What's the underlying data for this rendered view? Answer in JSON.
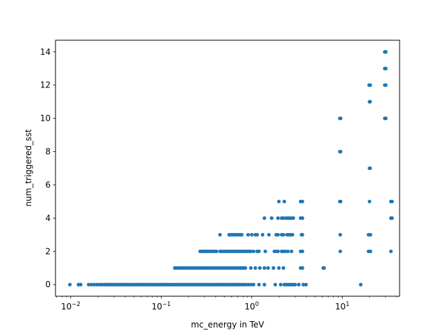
{
  "chart_data": {
    "type": "scatter",
    "title": "",
    "xlabel": "mc_energy in TeV",
    "ylabel": "num_triggered_sst",
    "xscale": "log",
    "xlim": [
      0.0068,
      43
    ],
    "ylim": [
      -0.7,
      14.7
    ],
    "x_ticks": [
      {
        "value": 0.01,
        "base": "10",
        "exp": "−2"
      },
      {
        "value": 0.1,
        "base": "10",
        "exp": "−1"
      },
      {
        "value": 1,
        "base": "10",
        "exp": "0"
      },
      {
        "value": 10,
        "base": "10",
        "exp": "1"
      }
    ],
    "y_ticks": [
      0,
      2,
      4,
      6,
      8,
      10,
      12,
      14
    ],
    "grid": false,
    "legend": "none",
    "marker_color": "#1f77b4",
    "series": [
      {
        "points": [
          [
            0.0098,
            0
          ],
          [
            0.0122,
            0
          ],
          [
            0.0129,
            0
          ],
          [
            0.0158,
            0
          ],
          [
            0.017,
            0
          ],
          [
            0.0182,
            0
          ],
          [
            0.0195,
            0
          ],
          [
            0.0208,
            0
          ],
          [
            0.022,
            0
          ],
          [
            0.0234,
            0
          ],
          [
            0.0245,
            0
          ],
          [
            0.0257,
            0
          ],
          [
            0.0269,
            0
          ],
          [
            0.0282,
            0
          ],
          [
            0.0295,
            0
          ],
          [
            0.0309,
            0
          ],
          [
            0.0324,
            0
          ],
          [
            0.0339,
            0
          ],
          [
            0.0355,
            0
          ],
          [
            0.0372,
            0
          ],
          [
            0.0389,
            0
          ],
          [
            0.0407,
            0
          ],
          [
            0.0427,
            0
          ],
          [
            0.0447,
            0
          ],
          [
            0.0468,
            0
          ],
          [
            0.049,
            0
          ],
          [
            0.0513,
            0
          ],
          [
            0.0537,
            0
          ],
          [
            0.0562,
            0
          ],
          [
            0.0589,
            0
          ],
          [
            0.0617,
            0
          ],
          [
            0.0646,
            0
          ],
          [
            0.0676,
            0
          ],
          [
            0.0708,
            0
          ],
          [
            0.0741,
            0
          ],
          [
            0.0776,
            0
          ],
          [
            0.0813,
            0
          ],
          [
            0.0851,
            0
          ],
          [
            0.0891,
            0
          ],
          [
            0.0933,
            0
          ],
          [
            0.0977,
            0
          ],
          [
            0.1023,
            0
          ],
          [
            0.1072,
            0
          ],
          [
            0.1122,
            0
          ],
          [
            0.1175,
            0
          ],
          [
            0.123,
            0
          ],
          [
            0.1288,
            0
          ],
          [
            0.1349,
            0
          ],
          [
            0.1413,
            0
          ],
          [
            0.1479,
            0
          ],
          [
            0.1549,
            0
          ],
          [
            0.1622,
            0
          ],
          [
            0.1698,
            0
          ],
          [
            0.1778,
            0
          ],
          [
            0.1862,
            0
          ],
          [
            0.195,
            0
          ],
          [
            0.2042,
            0
          ],
          [
            0.2138,
            0
          ],
          [
            0.2239,
            0
          ],
          [
            0.2344,
            0
          ],
          [
            0.2455,
            0
          ],
          [
            0.257,
            0
          ],
          [
            0.2692,
            0
          ],
          [
            0.2818,
            0
          ],
          [
            0.2951,
            0
          ],
          [
            0.309,
            0
          ],
          [
            0.3236,
            0
          ],
          [
            0.3388,
            0
          ],
          [
            0.3548,
            0
          ],
          [
            0.3715,
            0
          ],
          [
            0.389,
            0
          ],
          [
            0.4074,
            0
          ],
          [
            0.4266,
            0
          ],
          [
            0.4467,
            0
          ],
          [
            0.4677,
            0
          ],
          [
            0.4898,
            0
          ],
          [
            0.5129,
            0
          ],
          [
            0.537,
            0
          ],
          [
            0.5623,
            0
          ],
          [
            0.5888,
            0
          ],
          [
            0.6166,
            0
          ],
          [
            0.6457,
            0
          ],
          [
            0.6761,
            0
          ],
          [
            0.7079,
            0
          ],
          [
            0.7413,
            0
          ],
          [
            0.7762,
            0
          ],
          [
            0.8128,
            0
          ],
          [
            0.8511,
            0
          ],
          [
            0.912,
            0
          ],
          [
            0.9772,
            0
          ],
          [
            1.0471,
            0
          ],
          [
            1.2023,
            0
          ],
          [
            1.3804,
            0
          ],
          [
            1.8197,
            0
          ],
          [
            2.0893,
            0
          ],
          [
            2.2908,
            0
          ],
          [
            2.4,
            0
          ],
          [
            2.5119,
            0
          ],
          [
            2.6303,
            0
          ],
          [
            2.7542,
            0
          ],
          [
            2.884,
            0
          ],
          [
            3.02,
            0
          ],
          [
            3.3113,
            0
          ],
          [
            3.7154,
            0
          ],
          [
            3.9811,
            0
          ],
          [
            16.0,
            0
          ],
          [
            0.1413,
            1
          ],
          [
            0.1479,
            1
          ],
          [
            0.1549,
            1
          ],
          [
            0.1622,
            1
          ],
          [
            0.1698,
            1
          ],
          [
            0.1778,
            1
          ],
          [
            0.1862,
            1
          ],
          [
            0.195,
            1
          ],
          [
            0.2042,
            1
          ],
          [
            0.2138,
            1
          ],
          [
            0.2239,
            1
          ],
          [
            0.2344,
            1
          ],
          [
            0.2455,
            1
          ],
          [
            0.257,
            1
          ],
          [
            0.2692,
            1
          ],
          [
            0.2818,
            1
          ],
          [
            0.2951,
            1
          ],
          [
            0.309,
            1
          ],
          [
            0.3236,
            1
          ],
          [
            0.3388,
            1
          ],
          [
            0.3548,
            1
          ],
          [
            0.3715,
            1
          ],
          [
            0.389,
            1
          ],
          [
            0.4074,
            1
          ],
          [
            0.4266,
            1
          ],
          [
            0.4467,
            1
          ],
          [
            0.4677,
            1
          ],
          [
            0.4898,
            1
          ],
          [
            0.5129,
            1
          ],
          [
            0.537,
            1
          ],
          [
            0.5623,
            1
          ],
          [
            0.5888,
            1
          ],
          [
            0.6166,
            1
          ],
          [
            0.6457,
            1
          ],
          [
            0.6761,
            1
          ],
          [
            0.7079,
            1
          ],
          [
            0.7413,
            1
          ],
          [
            0.7762,
            1
          ],
          [
            0.8128,
            1
          ],
          [
            0.8511,
            1
          ],
          [
            0.9772,
            1
          ],
          [
            1.0965,
            1
          ],
          [
            1.2303,
            1
          ],
          [
            1.3804,
            1
          ],
          [
            1.5136,
            1
          ],
          [
            1.7378,
            1
          ],
          [
            1.9953,
            1
          ],
          [
            2.2387,
            1
          ],
          [
            3.4674,
            1
          ],
          [
            3.6308,
            1
          ],
          [
            6.166,
            1
          ],
          [
            6.3096,
            1
          ],
          [
            0.2692,
            2
          ],
          [
            0.2818,
            2
          ],
          [
            0.2951,
            2
          ],
          [
            0.309,
            2
          ],
          [
            0.3236,
            2
          ],
          [
            0.3388,
            2
          ],
          [
            0.3548,
            2
          ],
          [
            0.3715,
            2
          ],
          [
            0.389,
            2
          ],
          [
            0.4074,
            2
          ],
          [
            0.4467,
            2
          ],
          [
            0.4677,
            2
          ],
          [
            0.4898,
            2
          ],
          [
            0.5129,
            2
          ],
          [
            0.537,
            2
          ],
          [
            0.5623,
            2
          ],
          [
            0.5888,
            2
          ],
          [
            0.6166,
            2
          ],
          [
            0.6457,
            2
          ],
          [
            0.6761,
            2
          ],
          [
            0.7079,
            2
          ],
          [
            0.7413,
            2
          ],
          [
            0.7762,
            2
          ],
          [
            0.8128,
            2
          ],
          [
            0.8511,
            2
          ],
          [
            0.8913,
            2
          ],
          [
            0.9333,
            2
          ],
          [
            0.9772,
            2
          ],
          [
            1.0471,
            2
          ],
          [
            1.1482,
            2
          ],
          [
            1.2023,
            2
          ],
          [
            1.4125,
            2
          ],
          [
            1.7783,
            2
          ],
          [
            1.8621,
            2
          ],
          [
            1.9498,
            2
          ],
          [
            2.138,
            2
          ],
          [
            2.2387,
            2
          ],
          [
            2.3442,
            2
          ],
          [
            2.5119,
            2
          ],
          [
            2.7542,
            2
          ],
          [
            3.4674,
            2
          ],
          [
            3.6308,
            2
          ],
          [
            9.5,
            2
          ],
          [
            19.5,
            2
          ],
          [
            20.5,
            2
          ],
          [
            34.5,
            2
          ],
          [
            0.4467,
            3
          ],
          [
            0.5623,
            3
          ],
          [
            0.5888,
            3
          ],
          [
            0.6166,
            3
          ],
          [
            0.6457,
            3
          ],
          [
            0.6761,
            3
          ],
          [
            0.7079,
            3
          ],
          [
            0.7413,
            3
          ],
          [
            0.7762,
            3
          ],
          [
            0.912,
            3
          ],
          [
            1.0,
            3
          ],
          [
            1.0965,
            3
          ],
          [
            1.1482,
            3
          ],
          [
            1.3183,
            3
          ],
          [
            1.5488,
            3
          ],
          [
            1.8621,
            3
          ],
          [
            1.9498,
            3
          ],
          [
            2.138,
            3
          ],
          [
            2.2387,
            3
          ],
          [
            2.4547,
            3
          ],
          [
            2.5704,
            3
          ],
          [
            2.6915,
            3
          ],
          [
            2.8184,
            3
          ],
          [
            3.5481,
            3
          ],
          [
            3.6308,
            3
          ],
          [
            9.5,
            3
          ],
          [
            19.5,
            3
          ],
          [
            20.5,
            3
          ],
          [
            1.3804,
            4
          ],
          [
            1.6596,
            4
          ],
          [
            1.9498,
            4
          ],
          [
            2.138,
            4
          ],
          [
            2.2387,
            4
          ],
          [
            2.3988,
            4
          ],
          [
            2.5119,
            4
          ],
          [
            2.6303,
            4
          ],
          [
            2.7542,
            4
          ],
          [
            2.884,
            4
          ],
          [
            3.4674,
            4
          ],
          [
            3.6308,
            4
          ],
          [
            34.5,
            4
          ],
          [
            35.5,
            4
          ],
          [
            1.9953,
            5
          ],
          [
            2.2908,
            5
          ],
          [
            3.4674,
            5
          ],
          [
            3.6308,
            5
          ],
          [
            9.4,
            5
          ],
          [
            9.6,
            5
          ],
          [
            20.0,
            5
          ],
          [
            34.5,
            5
          ],
          [
            35.5,
            5
          ],
          [
            20.0,
            7
          ],
          [
            20.3,
            7
          ],
          [
            9.4,
            8
          ],
          [
            9.6,
            8
          ],
          [
            9.4,
            10
          ],
          [
            9.6,
            10
          ],
          [
            29.5,
            10
          ],
          [
            30.3,
            10
          ],
          [
            20.0,
            11
          ],
          [
            20.3,
            11
          ],
          [
            19.8,
            12
          ],
          [
            20.4,
            12
          ],
          [
            29.5,
            12
          ],
          [
            30.3,
            12
          ],
          [
            29.5,
            13
          ],
          [
            30.3,
            13
          ],
          [
            29.5,
            14
          ],
          [
            30.3,
            14
          ]
        ]
      }
    ]
  }
}
